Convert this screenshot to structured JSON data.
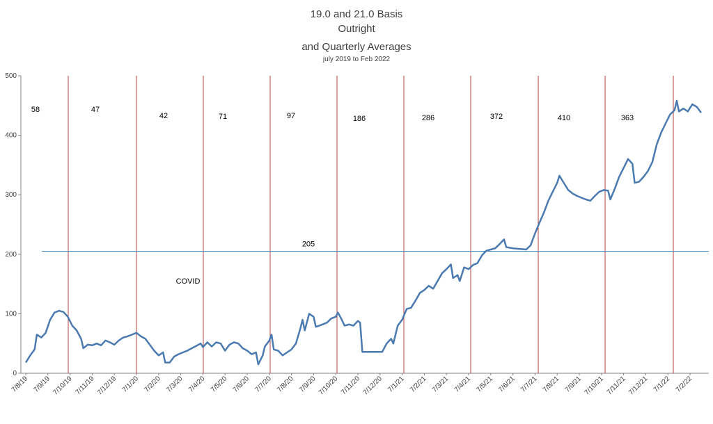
{
  "chart_data": {
    "type": "line",
    "title_lines": [
      "19.0 and 21.0 Basis",
      "Outright",
      "and Quarterly Averages"
    ],
    "subtitle": "july 2019 to Feb 2022",
    "ylim": [
      0,
      500
    ],
    "yticks": [
      "0",
      "100",
      "200",
      "300",
      "400",
      "500"
    ],
    "xticks": [
      "7/8/19",
      "7/9/19",
      "7/10/19",
      "7/11/19",
      "7/12/19",
      "7/1/20",
      "7/2/20",
      "7/3/20",
      "7/4/20",
      "7/5/20",
      "7/6/20",
      "7/7/20",
      "7/8/20",
      "7/9/20",
      "7/10/20",
      "7/11/20",
      "7/12/20",
      "7/1/21",
      "7/2/21",
      "7/3/21",
      "7/4/21",
      "7/5/21",
      "7/6/21",
      "7/7/21",
      "7/8/21",
      "7/9/21",
      "7/10/21",
      "7/11/21",
      "7/12/21",
      "7/1/22",
      "7/2/22"
    ],
    "series": [
      {
        "color": "#4a7ab0",
        "values": [
          [
            0,
            18
          ],
          [
            0.2,
            30
          ],
          [
            0.4,
            40
          ],
          [
            0.5,
            65
          ],
          [
            0.7,
            60
          ],
          [
            0.9,
            68
          ],
          [
            1.1,
            90
          ],
          [
            1.3,
            102
          ],
          [
            1.5,
            105
          ],
          [
            1.7,
            103
          ],
          [
            1.9,
            95
          ],
          [
            2.1,
            80
          ],
          [
            2.3,
            72
          ],
          [
            2.5,
            58
          ],
          [
            2.6,
            42
          ],
          [
            2.8,
            48
          ],
          [
            3.0,
            47
          ],
          [
            3.2,
            50
          ],
          [
            3.4,
            47
          ],
          [
            3.6,
            55
          ],
          [
            3.8,
            52
          ],
          [
            4.0,
            48
          ],
          [
            4.2,
            55
          ],
          [
            4.4,
            60
          ],
          [
            4.6,
            62
          ],
          [
            4.8,
            65
          ],
          [
            5.0,
            68
          ],
          [
            5.2,
            62
          ],
          [
            5.4,
            58
          ],
          [
            5.6,
            48
          ],
          [
            5.8,
            38
          ],
          [
            6.0,
            30
          ],
          [
            6.2,
            35
          ],
          [
            6.3,
            18
          ],
          [
            6.5,
            18
          ],
          [
            6.7,
            28
          ],
          [
            6.9,
            32
          ],
          [
            7.1,
            35
          ],
          [
            7.3,
            38
          ],
          [
            7.5,
            42
          ],
          [
            7.7,
            46
          ],
          [
            7.9,
            50
          ],
          [
            8.0,
            44
          ],
          [
            8.2,
            52
          ],
          [
            8.4,
            45
          ],
          [
            8.6,
            52
          ],
          [
            8.8,
            50
          ],
          [
            9.0,
            38
          ],
          [
            9.2,
            48
          ],
          [
            9.4,
            52
          ],
          [
            9.6,
            50
          ],
          [
            9.8,
            42
          ],
          [
            10.0,
            38
          ],
          [
            10.2,
            32
          ],
          [
            10.4,
            35
          ],
          [
            10.5,
            15
          ],
          [
            10.7,
            30
          ],
          [
            10.8,
            45
          ],
          [
            11.0,
            55
          ],
          [
            11.1,
            65
          ],
          [
            11.2,
            40
          ],
          [
            11.4,
            38
          ],
          [
            11.6,
            30
          ],
          [
            11.8,
            35
          ],
          [
            12.0,
            40
          ],
          [
            12.2,
            50
          ],
          [
            12.4,
            75
          ],
          [
            12.5,
            90
          ],
          [
            12.6,
            72
          ],
          [
            12.8,
            100
          ],
          [
            13.0,
            95
          ],
          [
            13.1,
            78
          ],
          [
            13.4,
            82
          ],
          [
            13.6,
            85
          ],
          [
            13.8,
            92
          ],
          [
            14.0,
            95
          ],
          [
            14.1,
            102
          ],
          [
            14.3,
            88
          ],
          [
            14.4,
            80
          ],
          [
            14.6,
            82
          ],
          [
            14.8,
            80
          ],
          [
            15.0,
            88
          ],
          [
            15.1,
            85
          ],
          [
            15.2,
            36
          ],
          [
            15.5,
            36
          ],
          [
            15.8,
            36
          ],
          [
            16.1,
            36
          ],
          [
            16.3,
            50
          ],
          [
            16.5,
            58
          ],
          [
            16.6,
            50
          ],
          [
            16.8,
            80
          ],
          [
            17.0,
            90
          ],
          [
            17.2,
            108
          ],
          [
            17.4,
            110
          ],
          [
            17.6,
            122
          ],
          [
            17.8,
            135
          ],
          [
            18.0,
            140
          ],
          [
            18.2,
            147
          ],
          [
            18.4,
            142
          ],
          [
            18.6,
            155
          ],
          [
            18.8,
            168
          ],
          [
            19.0,
            175
          ],
          [
            19.2,
            183
          ],
          [
            19.3,
            160
          ],
          [
            19.5,
            165
          ],
          [
            19.6,
            155
          ],
          [
            19.8,
            178
          ],
          [
            20.0,
            175
          ],
          [
            20.2,
            182
          ],
          [
            20.4,
            185
          ],
          [
            20.6,
            198
          ],
          [
            20.8,
            206
          ],
          [
            21.0,
            208
          ],
          [
            21.2,
            210
          ],
          [
            21.4,
            217
          ],
          [
            21.6,
            225
          ],
          [
            21.7,
            212
          ],
          [
            22.0,
            210
          ],
          [
            22.3,
            209
          ],
          [
            22.6,
            208
          ],
          [
            22.8,
            215
          ],
          [
            23.0,
            235
          ],
          [
            23.2,
            253
          ],
          [
            23.4,
            270
          ],
          [
            23.6,
            290
          ],
          [
            23.8,
            305
          ],
          [
            24.0,
            320
          ],
          [
            24.1,
            332
          ],
          [
            24.3,
            320
          ],
          [
            24.5,
            308
          ],
          [
            24.7,
            302
          ],
          [
            24.9,
            298
          ],
          [
            25.1,
            295
          ],
          [
            25.3,
            292
          ],
          [
            25.5,
            290
          ],
          [
            25.7,
            298
          ],
          [
            25.9,
            305
          ],
          [
            26.1,
            308
          ],
          [
            26.3,
            307
          ],
          [
            26.4,
            292
          ],
          [
            26.6,
            310
          ],
          [
            26.8,
            330
          ],
          [
            27.0,
            345
          ],
          [
            27.2,
            360
          ],
          [
            27.4,
            352
          ],
          [
            27.5,
            320
          ],
          [
            27.7,
            322
          ],
          [
            27.9,
            330
          ],
          [
            28.1,
            340
          ],
          [
            28.3,
            355
          ],
          [
            28.5,
            385
          ],
          [
            28.7,
            405
          ],
          [
            28.9,
            420
          ],
          [
            29.1,
            435
          ],
          [
            29.3,
            442
          ],
          [
            29.4,
            458
          ],
          [
            29.5,
            440
          ],
          [
            29.7,
            445
          ],
          [
            29.9,
            440
          ],
          [
            30.1,
            452
          ],
          [
            30.3,
            448
          ],
          [
            30.5,
            438
          ]
        ]
      }
    ],
    "quarter_averages": [
      "58",
      "47",
      "42",
      "71",
      "97",
      "186",
      "286",
      "372",
      "410",
      "363"
    ],
    "overall_average": {
      "label": "205",
      "value": 205
    },
    "annotation": "COVID"
  }
}
